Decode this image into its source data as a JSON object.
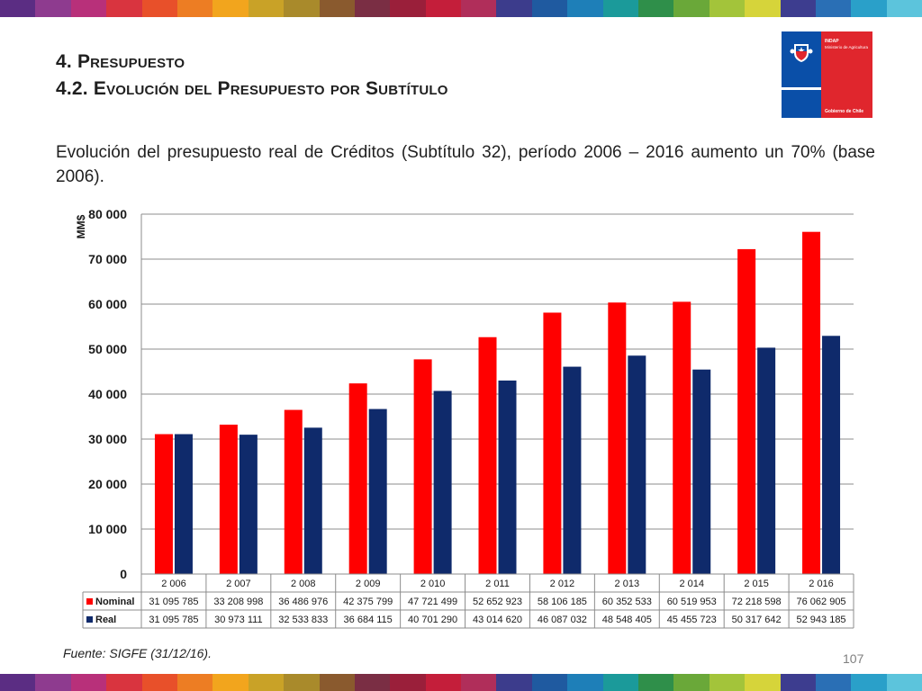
{
  "header": {
    "title_line1": "4. Presupuesto",
    "title_line2": "4.2. Evolución del Presupuesto por Subtítulo"
  },
  "logo": {
    "org": "INDAP",
    "org_sub": "Ministerio de Agricultura",
    "gov": "Gobierno de Chile",
    "colors": {
      "blue": "#0a4fa8",
      "red": "#e0262d"
    }
  },
  "description": "Evolución del presupuesto real de Créditos (Subtítulo 32), período 2006 – 2016 aumento un 70% (base 2006).",
  "chart_data": {
    "type": "bar",
    "title": "",
    "xlabel": "",
    "ylabel": "MM$",
    "ylim": [
      0,
      80000
    ],
    "yticks": [
      "0",
      "10 000",
      "20 000",
      "30 000",
      "40 000",
      "50 000",
      "60 000",
      "70 000",
      "80 000"
    ],
    "grid": true,
    "legend": "data-table",
    "categories": [
      "2 006",
      "2 007",
      "2 008",
      "2 009",
      "2 010",
      "2 011",
      "2 012",
      "2 013",
      "2 014",
      "2 015",
      "2 016"
    ],
    "series": [
      {
        "name": "Nominal",
        "color": "#ff0000",
        "values": [
          31095.785,
          33208.998,
          36486.976,
          42375.799,
          47721.499,
          52652.923,
          58106.185,
          60352.533,
          60519.953,
          72218.598,
          76062.905
        ],
        "labels": [
          "31 095 785",
          "33 208 998",
          "36 486 976",
          "42 375 799",
          "47 721 499",
          "52 652 923",
          "58 106 185",
          "60 352 533",
          "60 519 953",
          "72 218 598",
          "76 062 905"
        ]
      },
      {
        "name": "Real",
        "color": "#0f2a6b",
        "values": [
          31095.785,
          30973.111,
          32533.833,
          36684.115,
          40701.29,
          43014.62,
          46087.032,
          48548.405,
          45455.723,
          50317.642,
          52943.185
        ],
        "labels": [
          "31 095 785",
          "30 973 111",
          "32 533 833",
          "36 684 115",
          "40 701 290",
          "43 014 620",
          "46 087 032",
          "48 548 405",
          "45 455 723",
          "50 317 642",
          "52 943 185"
        ]
      }
    ]
  },
  "footer": {
    "source": "Fuente: SIGFE (31/12/16).",
    "page": "107"
  },
  "stripe_colors": [
    "#5b2d83",
    "#8e3b8f",
    "#b8307a",
    "#d9343f",
    "#e8502a",
    "#ed7d23",
    "#f2a51d",
    "#c9a227",
    "#a98a2b",
    "#8a5a2e",
    "#7a2e44",
    "#9a1f3a",
    "#c41e3a",
    "#b02e5a",
    "#3c3c8c",
    "#1f5aa0",
    "#1e7fb8",
    "#1b9a9a",
    "#2f8f4a",
    "#6aa839",
    "#a3c43a",
    "#d6d43a",
    "#3d3d8f",
    "#2a6fb5",
    "#2aa0c9",
    "#5cc4dc"
  ]
}
